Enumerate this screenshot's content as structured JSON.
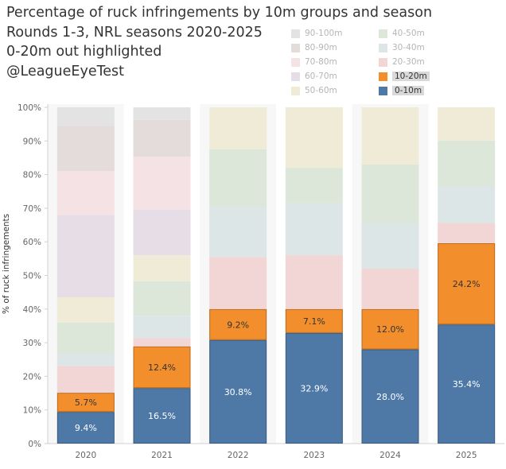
{
  "title_lines": [
    "Percentage of ruck infringements by 10m groups and season",
    "Rounds 1-3, NRL seasons 2020-2025",
    "0-20m out highlighted",
    "@LeagueEyeTest"
  ],
  "chart_data": {
    "type": "bar",
    "stacked": true,
    "title": "Percentage of ruck infringements by 10m groups and season",
    "subtitle": "Rounds 1-3, NRL seasons 2020-2025",
    "xlabel": "",
    "ylabel": "% of ruck infringements",
    "ylim": [
      0,
      100
    ],
    "y_ticks": [
      "0%",
      "10%",
      "20%",
      "30%",
      "40%",
      "50%",
      "60%",
      "70%",
      "80%",
      "90%",
      "100%"
    ],
    "categories": [
      "2020",
      "2021",
      "2022",
      "2023",
      "2024",
      "2025"
    ],
    "series": [
      {
        "name": "0-10m",
        "color": "#4e79a7",
        "highlighted": true,
        "values": [
          9.4,
          16.5,
          30.8,
          32.9,
          28.0,
          35.4
        ],
        "labels": [
          "9.4%",
          "16.5%",
          "30.8%",
          "32.9%",
          "28.0%",
          "35.4%"
        ]
      },
      {
        "name": "10-20m",
        "color": "#f28e2b",
        "highlighted": true,
        "values": [
          5.7,
          12.4,
          9.2,
          7.1,
          12.0,
          24.2
        ],
        "labels": [
          "5.7%",
          "12.4%",
          "9.2%",
          "7.1%",
          "12.0%",
          "24.2%"
        ]
      },
      {
        "name": "20-30m",
        "color": "#f2d5d5",
        "highlighted": false,
        "values": [
          8.0,
          2.5,
          15.5,
          16.0,
          12.0,
          6.0
        ]
      },
      {
        "name": "30-40m",
        "color": "#dce6e7",
        "highlighted": false,
        "values": [
          3.5,
          6.5,
          15.0,
          15.5,
          13.5,
          11.0
        ]
      },
      {
        "name": "40-50m",
        "color": "#dce7d9",
        "highlighted": false,
        "values": [
          9.4,
          10.4,
          17.0,
          10.5,
          17.5,
          13.5
        ]
      },
      {
        "name": "50-60m",
        "color": "#f0ebd6",
        "highlighted": false,
        "values": [
          7.5,
          7.7,
          12.5,
          18.0,
          17.0,
          9.9
        ]
      },
      {
        "name": "60-70m",
        "color": "#e6dde6",
        "highlighted": false,
        "values": [
          24.5,
          13.5,
          0,
          0,
          0,
          0
        ]
      },
      {
        "name": "70-80m",
        "color": "#f4e2e4",
        "highlighted": false,
        "values": [
          13.0,
          15.8,
          0,
          0,
          0,
          0
        ]
      },
      {
        "name": "80-90m",
        "color": "#e3dcda",
        "highlighted": false,
        "values": [
          13.5,
          11.0,
          0,
          0,
          0,
          0
        ]
      },
      {
        "name": "90-100m",
        "color": "#e3e3e3",
        "highlighted": false,
        "values": [
          5.5,
          3.7,
          0,
          0,
          0,
          0
        ]
      }
    ],
    "legend": {
      "placement": "top-right",
      "columns": [
        [
          "90-100m",
          "80-90m",
          "70-80m",
          "60-70m",
          "50-60m"
        ],
        [
          "40-50m",
          "30-40m",
          "20-30m",
          "10-20m",
          "0-10m"
        ]
      ]
    }
  }
}
